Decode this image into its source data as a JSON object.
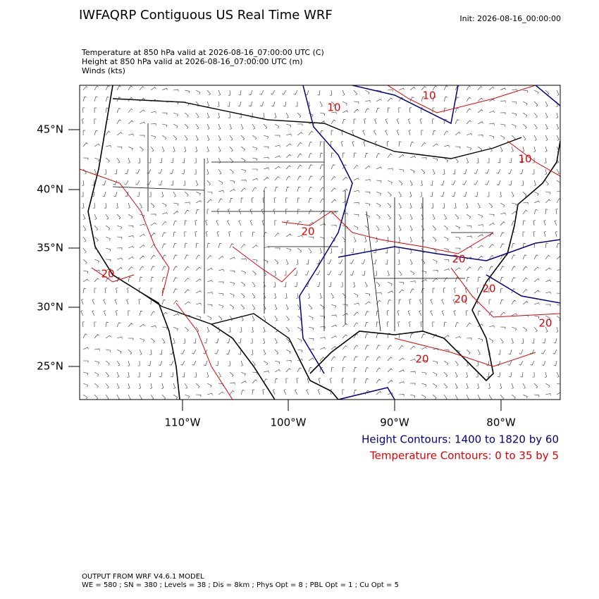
{
  "header": {
    "title": "IWFAQRP Contiguous US Real Time WRF",
    "init": "Init: 2026-08-16_00:00:00",
    "fields": [
      "Temperature at 850 hPa valid at 2026-08-16_07:00:00 UTC   (C)",
      "Height at 850 hPa valid at 2026-08-16_07:00:00 UTC   (m)",
      "Winds   (kts)"
    ]
  },
  "map": {
    "lat_ticks": [
      "45°N",
      "40°N",
      "35°N",
      "30°N",
      "25°N"
    ],
    "lon_ticks": [
      "110°W",
      "100°W",
      "90°W",
      "80°W"
    ],
    "contour_labels": [
      "10",
      "10",
      "10",
      "20",
      "20",
      "20",
      "20",
      "20",
      "20",
      "20"
    ]
  },
  "legend": {
    "height": "Height Contours: 1400 to 1820 by 60",
    "temperature": "Temperature Contours: 0 to 35 by 5"
  },
  "footer": [
    "OUTPUT FROM WRF V4.6.1 MODEL",
    "WE = 580 ; SN = 380 ; Levels = 38 ; Dis = 8km ; Phys Opt = 8 ; PBL Opt = 1 ; Cu Opt = 5"
  ]
}
